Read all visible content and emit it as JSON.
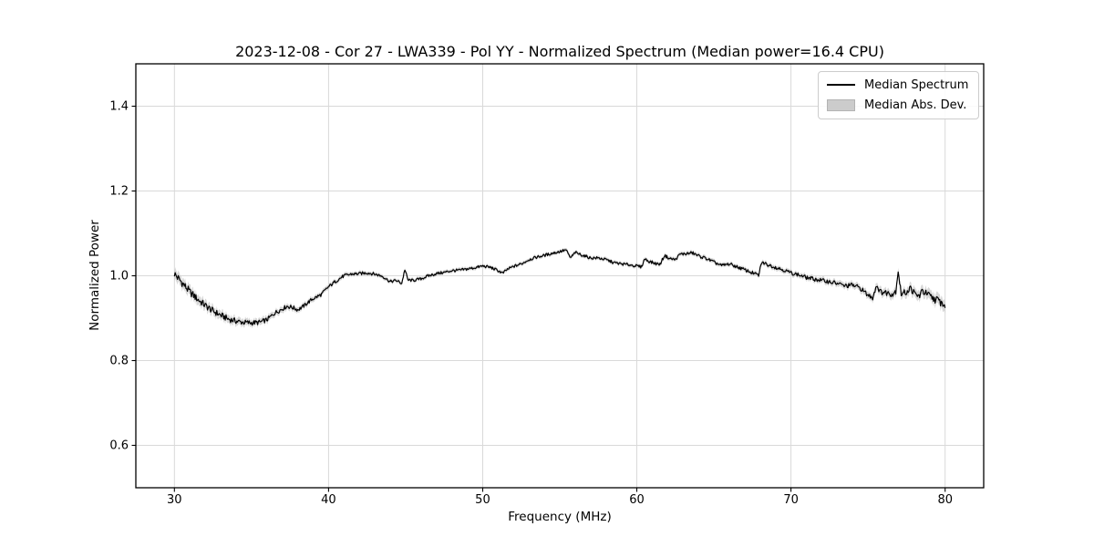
{
  "figure": {
    "background": "#ffffff"
  },
  "chart_data": {
    "type": "line",
    "title": "2023-12-08 - Cor 27 - LWA339 - Pol YY - Normalized Spectrum (Median power=16.4 CPU)",
    "xlabel": "Frequency (MHz)",
    "ylabel": "Normalized Power",
    "xlim": [
      27.5,
      82.5
    ],
    "ylim": [
      0.5,
      1.5
    ],
    "xticks": [
      30,
      40,
      50,
      60,
      70,
      80
    ],
    "yticks": [
      "0.6",
      "0.8",
      "1.0",
      "1.2",
      "1.4"
    ],
    "grid": true,
    "grid_color": "#d9d9d9",
    "axes_color": "#000000",
    "legend_position": "upper right",
    "render_step_mhz": 0.05,
    "noise_scale": 1.5,
    "series": [
      {
        "name": "Median Spectrum",
        "kind": "line",
        "color": "#000000",
        "points": [
          [
            30,
            1.005
          ],
          [
            30.2,
            0.996
          ],
          [
            30.4,
            0.988
          ],
          [
            30.7,
            0.975
          ],
          [
            31,
            0.962
          ],
          [
            31.5,
            0.945
          ],
          [
            32,
            0.93
          ],
          [
            32.5,
            0.917
          ],
          [
            33,
            0.907
          ],
          [
            33.5,
            0.898
          ],
          [
            34,
            0.893
          ],
          [
            34.5,
            0.89
          ],
          [
            35,
            0.889
          ],
          [
            35.5,
            0.89
          ],
          [
            36,
            0.896
          ],
          [
            36.5,
            0.912
          ],
          [
            37,
            0.922
          ],
          [
            37.3,
            0.928
          ],
          [
            37.6,
            0.926
          ],
          [
            38,
            0.92
          ],
          [
            38.3,
            0.926
          ],
          [
            38.7,
            0.938
          ],
          [
            39,
            0.946
          ],
          [
            39.5,
            0.955
          ],
          [
            40,
            0.974
          ],
          [
            40.5,
            0.988
          ],
          [
            41,
            1.0
          ],
          [
            41.5,
            1.004
          ],
          [
            42,
            1.005
          ],
          [
            42.5,
            1.007
          ],
          [
            43,
            1.004
          ],
          [
            43.5,
            0.999
          ],
          [
            44,
            0.986
          ],
          [
            44.4,
            0.989
          ],
          [
            44.75,
            0.982
          ],
          [
            44.95,
            1.015
          ],
          [
            45.15,
            0.99
          ],
          [
            45.5,
            0.989
          ],
          [
            46,
            0.993
          ],
          [
            46.5,
            1.0
          ],
          [
            47,
            1.005
          ],
          [
            47.5,
            1.008
          ],
          [
            48,
            1.012
          ],
          [
            48.5,
            1.013
          ],
          [
            49,
            1.016
          ],
          [
            49.5,
            1.019
          ],
          [
            50,
            1.023
          ],
          [
            50.5,
            1.02
          ],
          [
            51,
            1.012
          ],
          [
            51.3,
            1.006
          ],
          [
            51.6,
            1.015
          ],
          [
            52,
            1.022
          ],
          [
            52.5,
            1.028
          ],
          [
            53,
            1.038
          ],
          [
            53.5,
            1.044
          ],
          [
            54,
            1.048
          ],
          [
            54.5,
            1.053
          ],
          [
            55,
            1.057
          ],
          [
            55.4,
            1.061
          ],
          [
            55.7,
            1.042
          ],
          [
            56,
            1.055
          ],
          [
            56.5,
            1.048
          ],
          [
            57,
            1.042
          ],
          [
            57.5,
            1.042
          ],
          [
            58,
            1.038
          ],
          [
            58.5,
            1.031
          ],
          [
            59,
            1.028
          ],
          [
            59.5,
            1.026
          ],
          [
            60,
            1.023
          ],
          [
            60.3,
            1.021
          ],
          [
            60.5,
            1.04
          ],
          [
            60.8,
            1.034
          ],
          [
            61.2,
            1.029
          ],
          [
            61.5,
            1.027
          ],
          [
            61.8,
            1.048
          ],
          [
            62.1,
            1.041
          ],
          [
            62.5,
            1.038
          ],
          [
            62.8,
            1.051
          ],
          [
            63.2,
            1.052
          ],
          [
            63.6,
            1.054
          ],
          [
            64,
            1.047
          ],
          [
            64.5,
            1.041
          ],
          [
            65,
            1.032
          ],
          [
            65.5,
            1.024
          ],
          [
            66,
            1.028
          ],
          [
            66.5,
            1.021
          ],
          [
            67,
            1.014
          ],
          [
            67.5,
            1.007
          ],
          [
            67.9,
            1.001
          ],
          [
            68.1,
            1.032
          ],
          [
            68.5,
            1.026
          ],
          [
            69,
            1.02
          ],
          [
            69.5,
            1.014
          ],
          [
            70,
            1.007
          ],
          [
            70.5,
            1.002
          ],
          [
            71,
            0.996
          ],
          [
            71.5,
            0.992
          ],
          [
            72,
            0.989
          ],
          [
            72.5,
            0.986
          ],
          [
            73,
            0.982
          ],
          [
            73.5,
            0.976
          ],
          [
            74,
            0.978
          ],
          [
            74.5,
            0.971
          ],
          [
            75,
            0.954
          ],
          [
            75.3,
            0.949
          ],
          [
            75.55,
            0.978
          ],
          [
            75.8,
            0.962
          ],
          [
            76.2,
            0.96
          ],
          [
            76.6,
            0.957
          ],
          [
            76.8,
            0.964
          ],
          [
            76.95,
            1.013
          ],
          [
            77.15,
            0.957
          ],
          [
            77.5,
            0.962
          ],
          [
            77.75,
            0.971
          ],
          [
            78.05,
            0.956
          ],
          [
            78.3,
            0.952
          ],
          [
            78.55,
            0.964
          ],
          [
            78.8,
            0.957
          ],
          [
            79.1,
            0.949
          ],
          [
            79.4,
            0.944
          ],
          [
            79.7,
            0.938
          ],
          [
            80,
            0.929
          ]
        ]
      },
      {
        "name": "Median Abs. Dev.",
        "kind": "band",
        "color": "#c9c9c9",
        "half_width_points": [
          [
            30,
            0.013
          ],
          [
            31,
            0.012
          ],
          [
            32,
            0.011
          ],
          [
            33,
            0.01
          ],
          [
            34,
            0.009
          ],
          [
            35,
            0.008
          ],
          [
            36,
            0.0075
          ],
          [
            37,
            0.007
          ],
          [
            38,
            0.0065
          ],
          [
            39,
            0.006
          ],
          [
            40,
            0.0055
          ],
          [
            42,
            0.005
          ],
          [
            45,
            0.0045
          ],
          [
            50,
            0.0045
          ],
          [
            55,
            0.0045
          ],
          [
            60,
            0.0045
          ],
          [
            63,
            0.005
          ],
          [
            66,
            0.005
          ],
          [
            68,
            0.0055
          ],
          [
            70,
            0.006
          ],
          [
            72,
            0.0065
          ],
          [
            74,
            0.0075
          ],
          [
            75,
            0.008
          ],
          [
            76,
            0.009
          ],
          [
            77,
            0.01
          ],
          [
            78,
            0.011
          ],
          [
            79,
            0.012
          ],
          [
            80,
            0.014
          ]
        ]
      }
    ]
  }
}
